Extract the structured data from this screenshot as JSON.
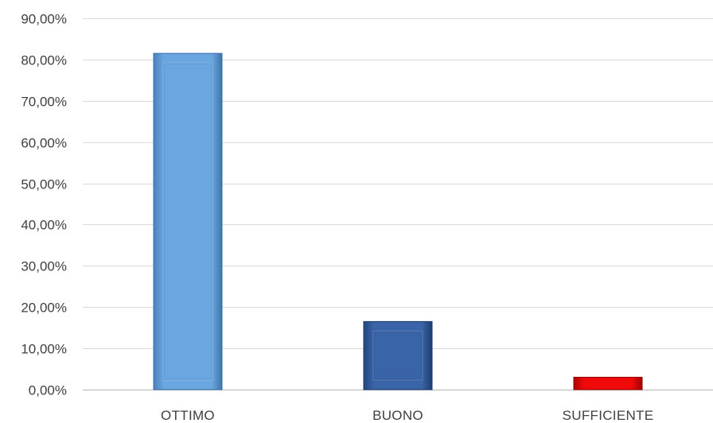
{
  "chart_data": {
    "type": "bar",
    "categories": [
      "OTTIMO",
      "BUONO",
      "SUFFICIENTE"
    ],
    "values": [
      81.5,
      16.5,
      3.0
    ],
    "ylim": [
      0,
      90
    ],
    "yticks": [
      0,
      10,
      20,
      30,
      40,
      50,
      60,
      70,
      80,
      90
    ],
    "ytick_labels": [
      "0,00%",
      "10,00%",
      "20,00%",
      "30,00%",
      "40,00%",
      "50,00%",
      "60,00%",
      "70,00%",
      "80,00%",
      "90,00%"
    ],
    "grid": true,
    "legend": "none",
    "colors": [
      "#5b9bd5",
      "#2f5597",
      "#e00000"
    ]
  }
}
